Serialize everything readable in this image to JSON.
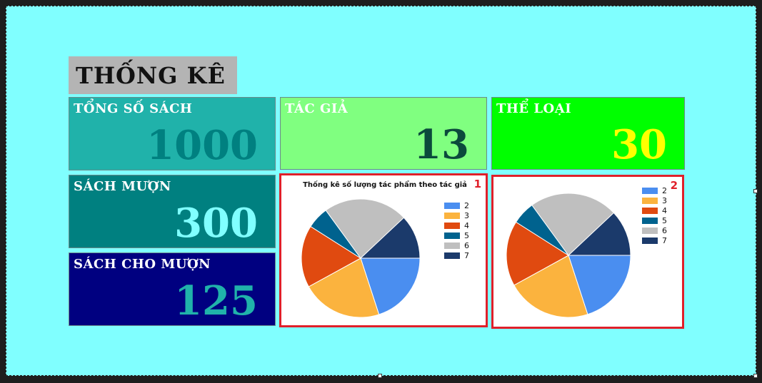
{
  "title": "THỐNG KÊ",
  "stats": {
    "total_books": {
      "label": "TỔNG SỐ SÁCH",
      "value": "1000",
      "bg": "#20b2aa",
      "label_color": "#ffffff",
      "value_color": "#008080"
    },
    "authors": {
      "label": "TÁC GIẢ",
      "value": "13",
      "bg": "#80ff80",
      "label_color": "#ffffff",
      "value_color": "#0b4a3c"
    },
    "genres": {
      "label": "THỂ LOẠI",
      "value": "30",
      "bg": "#00ff00",
      "label_color": "#ffffff",
      "value_color": "#ffff00"
    },
    "borrowed": {
      "label": "SÁCH MƯỢN",
      "value": "300",
      "bg": "#008080",
      "label_color": "#ffffff",
      "value_color": "#80ffff"
    },
    "lent": {
      "label": "SÁCH CHO MƯỢN",
      "value": "125",
      "bg": "#000080",
      "label_color": "#ffffff",
      "value_color": "#20b2aa"
    }
  },
  "charts": [
    {
      "badge": "1",
      "title": "Thống kê số lượng tác phẩm theo tác giả"
    },
    {
      "badge": "2",
      "title": ""
    }
  ],
  "chart_data": [
    {
      "type": "pie",
      "title": "Thống kê số lượng tác phẩm theo tác giả",
      "legend": "right",
      "slices": [
        {
          "label": "2",
          "value": 20,
          "color": "#4a8ef0"
        },
        {
          "label": "3",
          "value": 22,
          "color": "#fbb33e"
        },
        {
          "label": "4",
          "value": 17,
          "color": "#e04a10"
        },
        {
          "label": "5",
          "value": 6,
          "color": "#00628e"
        },
        {
          "label": "6",
          "value": 23,
          "color": "#bfbfbf"
        },
        {
          "label": "7",
          "value": 12,
          "color": "#1b3a6b"
        }
      ]
    },
    {
      "type": "pie",
      "legend": "top-right",
      "slices": [
        {
          "label": "2",
          "value": 20,
          "color": "#4a8ef0"
        },
        {
          "label": "3",
          "value": 22,
          "color": "#fbb33e"
        },
        {
          "label": "4",
          "value": 17,
          "color": "#e04a10"
        },
        {
          "label": "5",
          "value": 6,
          "color": "#00628e"
        },
        {
          "label": "6",
          "value": 23,
          "color": "#bfbfbf"
        },
        {
          "label": "7",
          "value": 12,
          "color": "#1b3a6b"
        }
      ]
    }
  ]
}
